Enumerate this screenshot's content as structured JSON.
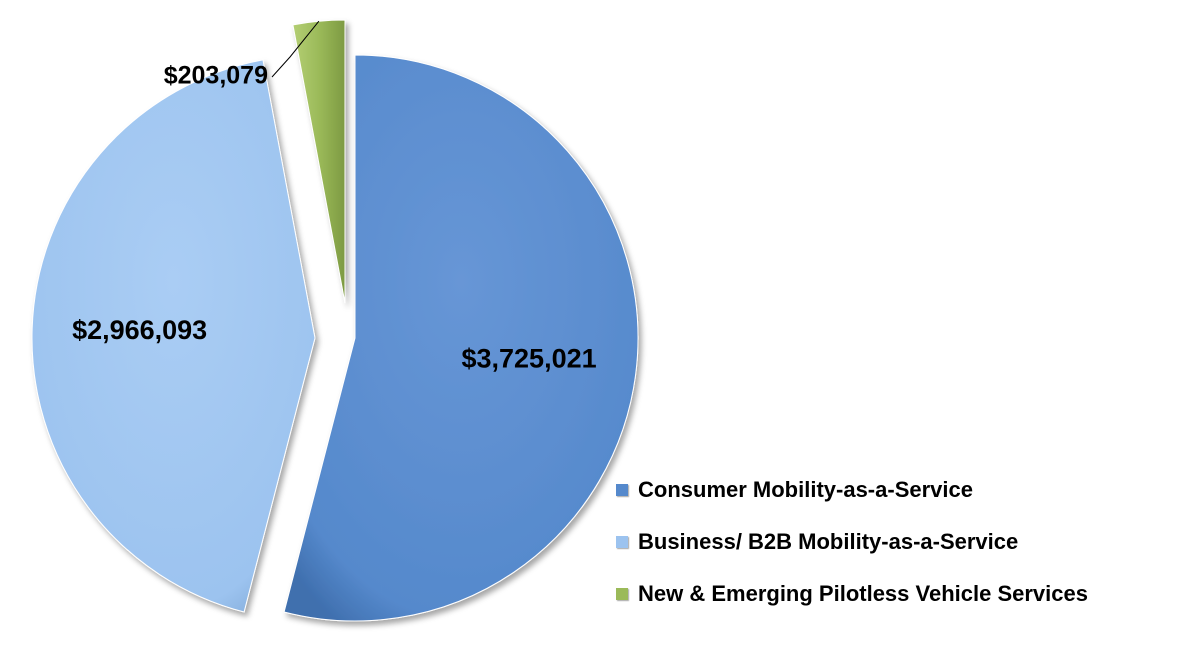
{
  "chart_data": {
    "type": "pie",
    "title": "",
    "categories": [
      "Consumer Mobility-as-a-Service",
      "Business/ B2B Mobility-as-a-Service",
      "New & Emerging Pilotless Vehicle Services"
    ],
    "values": [
      3725021,
      2966093,
      203079
    ],
    "data_labels": [
      "$3,725,021",
      "$2,966,093",
      "$203,079"
    ],
    "colors": [
      "#5589cc",
      "#9cc3ef",
      "#9bba59"
    ],
    "exploded": true,
    "legend_position": "bottom-right"
  },
  "legend": {
    "items": [
      {
        "label": "Consumer Mobility-as-a-Service",
        "color": "#5589cc"
      },
      {
        "label": "Business/ B2B Mobility-as-a-Service",
        "color": "#9cc3ef"
      },
      {
        "label": "New & Emerging Pilotless Vehicle Services",
        "color": "#9bba59"
      }
    ]
  }
}
